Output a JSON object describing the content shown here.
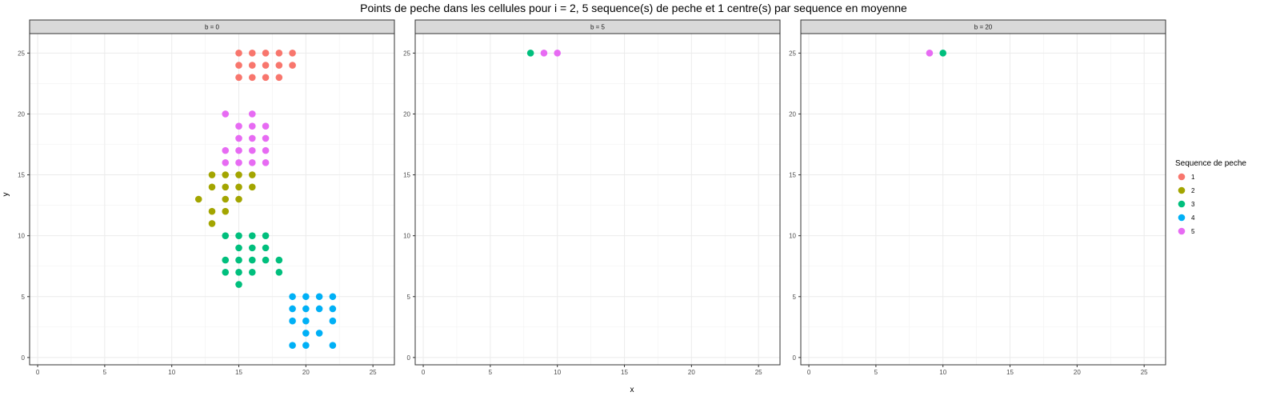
{
  "chart_data": {
    "type": "scatter",
    "title": "Points de peche dans les cellules pour i = 2, 5 sequence(s) de peche et 1 centre(s) par sequence en moyenne",
    "xlabel": "x",
    "ylabel": "y",
    "xlim": [
      -0.6,
      26.6
    ],
    "ylim": [
      -0.6,
      26.6
    ],
    "x_ticks": [
      0,
      5,
      10,
      15,
      20,
      25
    ],
    "y_ticks": [
      0,
      5,
      10,
      15,
      20,
      25
    ],
    "grid": true,
    "legend": {
      "title": "Sequence de peche",
      "position": "right",
      "entries": [
        {
          "label": "1",
          "color": "#F8766D"
        },
        {
          "label": "2",
          "color": "#A3A500"
        },
        {
          "label": "3",
          "color": "#00BF7D"
        },
        {
          "label": "4",
          "color": "#00B0F6"
        },
        {
          "label": "5",
          "color": "#E76BF3"
        }
      ]
    },
    "panels": [
      {
        "label": "b = 0",
        "series": [
          {
            "name": "1",
            "points": [
              [
                15,
                25
              ],
              [
                16,
                25
              ],
              [
                17,
                25
              ],
              [
                18,
                25
              ],
              [
                19,
                25
              ],
              [
                15,
                24
              ],
              [
                16,
                24
              ],
              [
                17,
                24
              ],
              [
                18,
                24
              ],
              [
                19,
                24
              ],
              [
                15,
                23
              ],
              [
                16,
                23
              ],
              [
                17,
                23
              ],
              [
                18,
                23
              ]
            ]
          },
          {
            "name": "2",
            "points": [
              [
                13,
                15
              ],
              [
                14,
                15
              ],
              [
                15,
                15
              ],
              [
                16,
                15
              ],
              [
                13,
                14
              ],
              [
                14,
                14
              ],
              [
                15,
                14
              ],
              [
                16,
                14
              ],
              [
                14,
                13
              ],
              [
                15,
                13
              ],
              [
                12,
                13
              ],
              [
                13,
                12
              ],
              [
                14,
                12
              ],
              [
                13,
                11
              ]
            ]
          },
          {
            "name": "3",
            "points": [
              [
                14,
                10
              ],
              [
                15,
                10
              ],
              [
                16,
                10
              ],
              [
                17,
                10
              ],
              [
                15,
                9
              ],
              [
                16,
                9
              ],
              [
                17,
                9
              ],
              [
                14,
                8
              ],
              [
                15,
                8
              ],
              [
                16,
                8
              ],
              [
                17,
                8
              ],
              [
                18,
                8
              ],
              [
                14,
                7
              ],
              [
                15,
                7
              ],
              [
                16,
                7
              ],
              [
                18,
                7
              ],
              [
                15,
                6
              ]
            ]
          },
          {
            "name": "4",
            "points": [
              [
                19,
                5
              ],
              [
                20,
                5
              ],
              [
                21,
                5
              ],
              [
                22,
                5
              ],
              [
                19,
                4
              ],
              [
                20,
                4
              ],
              [
                21,
                4
              ],
              [
                22,
                4
              ],
              [
                19,
                3
              ],
              [
                20,
                3
              ],
              [
                22,
                3
              ],
              [
                20,
                2
              ],
              [
                21,
                2
              ],
              [
                19,
                1
              ],
              [
                20,
                1
              ],
              [
                22,
                1
              ]
            ]
          },
          {
            "name": "5",
            "points": [
              [
                14,
                20
              ],
              [
                16,
                20
              ],
              [
                15,
                19
              ],
              [
                16,
                19
              ],
              [
                17,
                19
              ],
              [
                15,
                18
              ],
              [
                16,
                18
              ],
              [
                17,
                18
              ],
              [
                14,
                17
              ],
              [
                15,
                17
              ],
              [
                16,
                17
              ],
              [
                17,
                17
              ],
              [
                14,
                16
              ],
              [
                15,
                16
              ],
              [
                16,
                16
              ],
              [
                17,
                16
              ]
            ]
          }
        ]
      },
      {
        "label": "b = 5",
        "series": [
          {
            "name": "3",
            "points": [
              [
                8,
                25
              ]
            ]
          },
          {
            "name": "5",
            "points": [
              [
                9,
                25
              ],
              [
                10,
                25
              ]
            ]
          }
        ]
      },
      {
        "label": "b = 20",
        "series": [
          {
            "name": "5",
            "points": [
              [
                9,
                25
              ]
            ]
          },
          {
            "name": "3",
            "points": [
              [
                10,
                25
              ]
            ]
          }
        ]
      }
    ]
  }
}
